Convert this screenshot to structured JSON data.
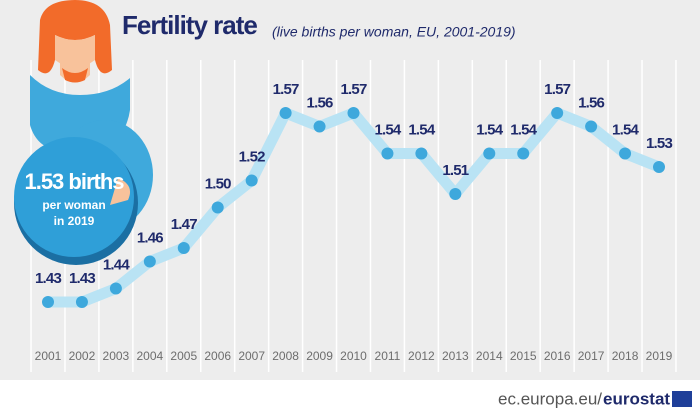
{
  "chart_data": {
    "type": "line",
    "title": "Fertility rate",
    "subtitle": "(live births per woman, EU, 2001-2019)",
    "callout": {
      "headline": "1.53 births",
      "line2": "per woman",
      "line3": "in 2019"
    },
    "source": {
      "domain": "ec.europa.eu/",
      "brand": "eurostat"
    },
    "categories": [
      "2001",
      "2002",
      "2003",
      "2004",
      "2005",
      "2006",
      "2007",
      "2008",
      "2009",
      "2010",
      "2011",
      "2012",
      "2013",
      "2014",
      "2015",
      "2016",
      "2017",
      "2018",
      "2019"
    ],
    "values": [
      1.43,
      1.43,
      1.44,
      1.46,
      1.47,
      1.5,
      1.52,
      1.57,
      1.56,
      1.57,
      1.54,
      1.54,
      1.51,
      1.54,
      1.54,
      1.57,
      1.56,
      1.54,
      1.53
    ],
    "value_labels": [
      "1.43",
      "1.43",
      "1.44",
      "1.46",
      "1.47",
      "1.50",
      "1.52",
      "1.57",
      "1.56",
      "1.57",
      "1.54",
      "1.54",
      "1.51",
      "1.54",
      "1.54",
      "1.57",
      "1.56",
      "1.54",
      "1.53"
    ],
    "line_color": "#b9e3f4",
    "marker_color": "#3ea8dc",
    "grid": true
  }
}
